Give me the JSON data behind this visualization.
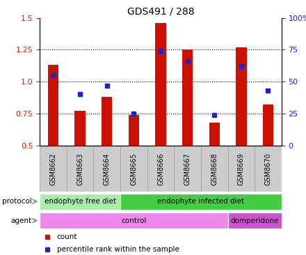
{
  "title": "GDS491 / 288",
  "samples": [
    "GSM8662",
    "GSM8663",
    "GSM8664",
    "GSM8665",
    "GSM8666",
    "GSM8667",
    "GSM8668",
    "GSM8669",
    "GSM8670"
  ],
  "count_values": [
    1.13,
    0.77,
    0.88,
    0.74,
    1.46,
    1.25,
    0.68,
    1.27,
    0.82
  ],
  "percentile_values": [
    55,
    40,
    47,
    25,
    74,
    66,
    24,
    62,
    43
  ],
  "ylim_left": [
    0.5,
    1.5
  ],
  "ylim_right": [
    0,
    100
  ],
  "yticks_left": [
    0.5,
    0.75,
    1.0,
    1.25,
    1.5
  ],
  "yticks_right": [
    0,
    25,
    50,
    75,
    100
  ],
  "ytick_labels_right": [
    "0",
    "25",
    "50",
    "75",
    "100%"
  ],
  "bar_color": "#cc1100",
  "dot_color": "#2222cc",
  "background_color": "#ffffff",
  "grid_color": "#000000",
  "protocol_groups": [
    {
      "label": "endophyte free diet",
      "start": 0,
      "end": 3,
      "color": "#aaeeaa"
    },
    {
      "label": "endophyte infected diet",
      "start": 3,
      "end": 9,
      "color": "#44cc44"
    }
  ],
  "agent_groups": [
    {
      "label": "control",
      "start": 0,
      "end": 7,
      "color": "#ee88ee"
    },
    {
      "label": "domperidone",
      "start": 7,
      "end": 9,
      "color": "#cc55cc"
    }
  ],
  "legend_items": [
    {
      "label": "count",
      "color": "#cc1100"
    },
    {
      "label": "percentile rank within the sample",
      "color": "#2222cc"
    }
  ],
  "tick_label_color_left": "#cc2200",
  "tick_label_color_right": "#2222cc",
  "xticklabel_bg": "#cccccc",
  "xticklabel_ec": "#999999"
}
